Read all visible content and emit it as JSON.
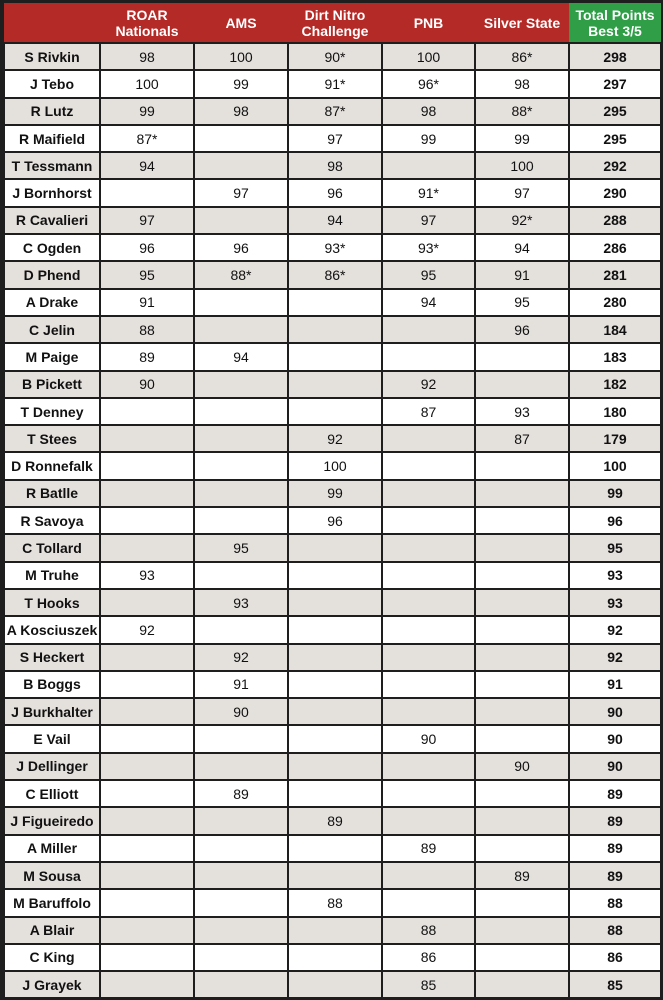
{
  "headers": [
    "",
    "ROAR\nNationals",
    "AMS",
    "Dirt Nitro\nChallenge",
    "PNB",
    "Silver State",
    "Total Points\nBest 3/5"
  ],
  "colors": {
    "header": "#b42a27",
    "total_header": "#2f9e47",
    "row_alt": "#e4e0dc",
    "row": "#ffffff"
  },
  "rows": [
    [
      "S Rivkin",
      "98",
      "100",
      "90*",
      "100",
      "86*",
      "298"
    ],
    [
      "J Tebo",
      "100",
      "99",
      "91*",
      "96*",
      "98",
      "297"
    ],
    [
      "R Lutz",
      "99",
      "98",
      "87*",
      "98",
      "88*",
      "295"
    ],
    [
      "R Maifield",
      "87*",
      "",
      "97",
      "99",
      "99",
      "295"
    ],
    [
      "T Tessmann",
      "94",
      "",
      "98",
      "",
      "100",
      "292"
    ],
    [
      "J Bornhorst",
      "",
      "97",
      "96",
      "91*",
      "97",
      "290"
    ],
    [
      "R Cavalieri",
      "97",
      "",
      "94",
      "97",
      "92*",
      "288"
    ],
    [
      "C Ogden",
      "96",
      "96",
      "93*",
      "93*",
      "94",
      "286"
    ],
    [
      "D Phend",
      "95",
      "88*",
      "86*",
      "95",
      "91",
      "281"
    ],
    [
      "A Drake",
      "91",
      "",
      "",
      "94",
      "95",
      "280"
    ],
    [
      "C Jelin",
      "88",
      "",
      "",
      "",
      "96",
      "184"
    ],
    [
      "M Paige",
      "89",
      "94",
      "",
      "",
      "",
      "183"
    ],
    [
      "B Pickett",
      "90",
      "",
      "",
      "92",
      "",
      "182"
    ],
    [
      "T Denney",
      "",
      "",
      "",
      "87",
      "93",
      "180"
    ],
    [
      "T Stees",
      "",
      "",
      "92",
      "",
      "87",
      "179"
    ],
    [
      "D Ronnefalk",
      "",
      "",
      "100",
      "",
      "",
      "100"
    ],
    [
      "R Batlle",
      "",
      "",
      "99",
      "",
      "",
      "99"
    ],
    [
      "R Savoya",
      "",
      "",
      "96",
      "",
      "",
      "96"
    ],
    [
      "C Tollard",
      "",
      "95",
      "",
      "",
      "",
      "95"
    ],
    [
      "M Truhe",
      "93",
      "",
      "",
      "",
      "",
      "93"
    ],
    [
      "T Hooks",
      "",
      "93",
      "",
      "",
      "",
      "93"
    ],
    [
      "A Kosciuszek",
      "92",
      "",
      "",
      "",
      "",
      "92"
    ],
    [
      "S Heckert",
      "",
      "92",
      "",
      "",
      "",
      "92"
    ],
    [
      "B Boggs",
      "",
      "91",
      "",
      "",
      "",
      "91"
    ],
    [
      "J Burkhalter",
      "",
      "90",
      "",
      "",
      "",
      "90"
    ],
    [
      "E Vail",
      "",
      "",
      "",
      "90",
      "",
      "90"
    ],
    [
      "J Dellinger",
      "",
      "",
      "",
      "",
      "90",
      "90"
    ],
    [
      "C Elliott",
      "",
      "89",
      "",
      "",
      "",
      "89"
    ],
    [
      "J Figueiredo",
      "",
      "",
      "89",
      "",
      "",
      "89"
    ],
    [
      "A Miller",
      "",
      "",
      "",
      "89",
      "",
      "89"
    ],
    [
      "M Sousa",
      "",
      "",
      "",
      "",
      "89",
      "89"
    ],
    [
      "M Baruffolo",
      "",
      "",
      "88",
      "",
      "",
      "88"
    ],
    [
      "A Blair",
      "",
      "",
      "",
      "88",
      "",
      "88"
    ],
    [
      "C King",
      "",
      "",
      "",
      "86",
      "",
      "86"
    ],
    [
      "J Grayek",
      "",
      "",
      "",
      "85",
      "",
      "85"
    ]
  ]
}
